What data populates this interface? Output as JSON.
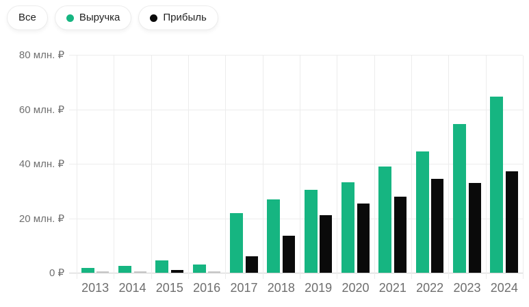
{
  "toolbar": {
    "all_label": "Все"
  },
  "chart_data": {
    "type": "bar",
    "title": "",
    "categories": [
      "2013",
      "2014",
      "2015",
      "2016",
      "2017",
      "2018",
      "2019",
      "2020",
      "2021",
      "2022",
      "2023",
      "2024"
    ],
    "series": [
      {
        "key": "revenue",
        "name": "Выручка",
        "color": "#16b581",
        "values": [
          1.8,
          2.4,
          4.6,
          3.1,
          22,
          27,
          30.5,
          33.2,
          39,
          44.5,
          54.7,
          64.7
        ]
      },
      {
        "key": "profit",
        "name": "Прибыль",
        "color": "#0a0a0a",
        "values": [
          0.2,
          0.2,
          1.0,
          0.2,
          6,
          13.5,
          21.2,
          25.5,
          28,
          34.5,
          33,
          37.3
        ]
      }
    ],
    "unit": "млн. ₽",
    "y_ticks": [
      {
        "value": 0,
        "label": "0 ₽"
      },
      {
        "value": 20,
        "label": "20 млн. ₽"
      },
      {
        "value": 40,
        "label": "40 млн. ₽"
      },
      {
        "value": 60,
        "label": "60 млн. ₽"
      },
      {
        "value": 80,
        "label": "80 млн. ₽"
      }
    ],
    "ylim": [
      0,
      80
    ],
    "grid": true,
    "legend_position": "top",
    "tiny_bar_color": "#c7c7c7",
    "axis_colors": {
      "gridline": "#ececec",
      "baseline": "#cfcfcf",
      "tick_label": "#6f6f6f"
    }
  }
}
